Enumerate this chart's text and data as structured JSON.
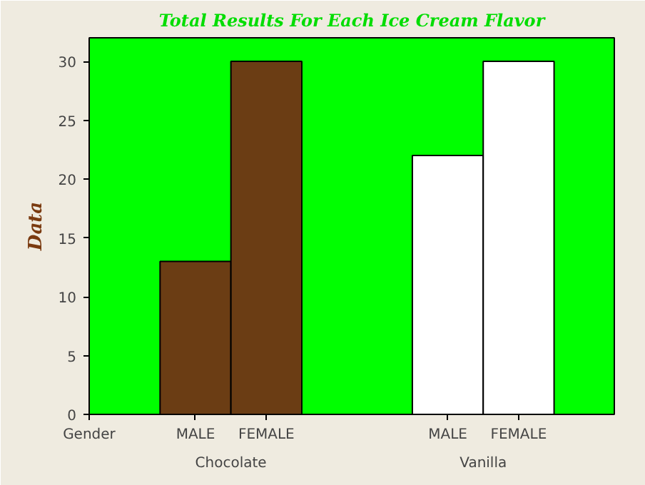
{
  "chart_data": {
    "type": "bar",
    "title": "Total Results For Each Ice Cream Flavor",
    "ylabel": "Data",
    "categories": [
      "MALE",
      "FEMALE",
      "MALE",
      "FEMALE"
    ],
    "values": [
      13,
      30,
      22,
      30
    ],
    "colors": [
      "#6b3d14",
      "#6b3d14",
      "#ffffff",
      "#ffffff"
    ],
    "ylim": [
      0,
      32
    ],
    "yticks": [
      0,
      5,
      10,
      15,
      20,
      25,
      30
    ],
    "grid": false,
    "annotations": [
      "Gender",
      "Chocolate",
      "Vanilla"
    ]
  }
}
